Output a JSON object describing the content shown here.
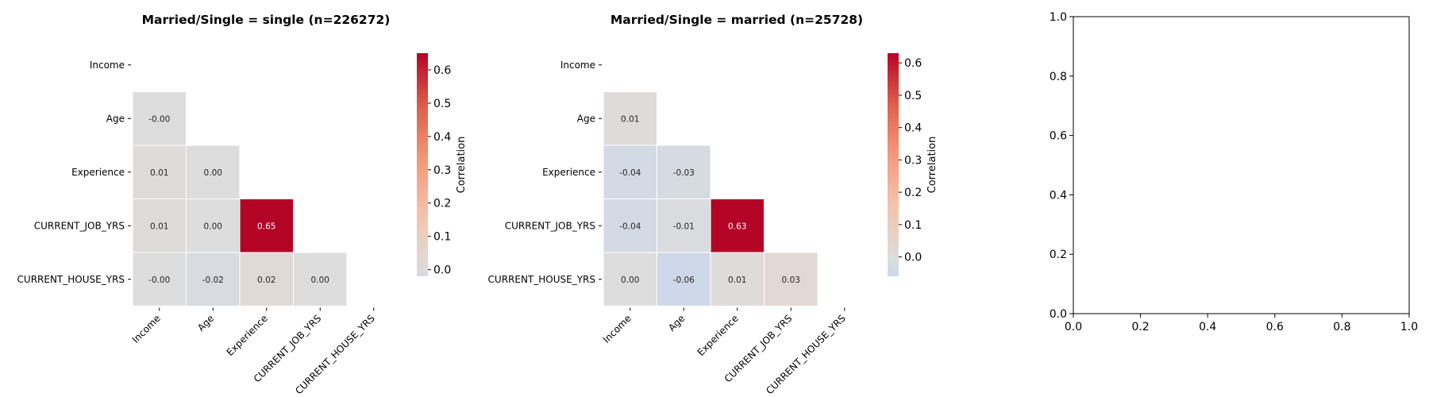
{
  "chart_data": [
    {
      "type": "heatmap",
      "title": "Married/Single = single (n=226272)",
      "rows": [
        "Income",
        "Age",
        "Experience",
        "CURRENT_JOB_YRS",
        "CURRENT_HOUSE_YRS"
      ],
      "cols": [
        "Income",
        "Age",
        "Experience",
        "CURRENT_JOB_YRS",
        "CURRENT_HOUSE_YRS"
      ],
      "mask": "upper-triangle-including-diagonal",
      "values": [
        [
          null,
          null,
          null,
          null,
          null
        ],
        [
          -0.0,
          null,
          null,
          null,
          null
        ],
        [
          0.01,
          0.0,
          null,
          null,
          null
        ],
        [
          0.01,
          0.0,
          0.65,
          null,
          null
        ],
        [
          -0.0,
          -0.02,
          0.02,
          0.0,
          null
        ]
      ],
      "cell_labels": [
        [
          "",
          "",
          "",
          "",
          ""
        ],
        [
          "-0.00",
          "",
          "",
          "",
          ""
        ],
        [
          "0.01",
          "0.00",
          "",
          "",
          ""
        ],
        [
          "0.01",
          "0.00",
          "0.65",
          "",
          ""
        ],
        [
          "-0.00",
          "-0.02",
          "0.02",
          "0.00",
          ""
        ]
      ],
      "colorbar": {
        "label": "Correlation",
        "range": [
          -0.02,
          0.65
        ],
        "ticks": [
          0.0,
          0.1,
          0.2,
          0.3,
          0.4,
          0.5,
          0.6
        ],
        "tick_labels": [
          "0.0",
          "0.1",
          "0.2",
          "0.3",
          "0.4",
          "0.5",
          "0.6"
        ],
        "colormap": "coolwarm-centered-at-0"
      }
    },
    {
      "type": "heatmap",
      "title": "Married/Single = married (n=25728)",
      "rows": [
        "Income",
        "Age",
        "Experience",
        "CURRENT_JOB_YRS",
        "CURRENT_HOUSE_YRS"
      ],
      "cols": [
        "Income",
        "Age",
        "Experience",
        "CURRENT_JOB_YRS",
        "CURRENT_HOUSE_YRS"
      ],
      "mask": "upper-triangle-including-diagonal",
      "values": [
        [
          null,
          null,
          null,
          null,
          null
        ],
        [
          0.01,
          null,
          null,
          null,
          null
        ],
        [
          -0.04,
          -0.03,
          null,
          null,
          null
        ],
        [
          -0.04,
          -0.01,
          0.63,
          null,
          null
        ],
        [
          0.0,
          -0.06,
          0.01,
          0.03,
          null
        ]
      ],
      "cell_labels": [
        [
          "",
          "",
          "",
          "",
          ""
        ],
        [
          "0.01",
          "",
          "",
          "",
          ""
        ],
        [
          "-0.04",
          "-0.03",
          "",
          "",
          ""
        ],
        [
          "-0.04",
          "-0.01",
          "0.63",
          "",
          ""
        ],
        [
          "0.00",
          "-0.06",
          "0.01",
          "0.03",
          ""
        ]
      ],
      "colorbar": {
        "label": "Correlation",
        "range": [
          -0.06,
          0.63
        ],
        "ticks": [
          0.0,
          0.1,
          0.2,
          0.3,
          0.4,
          0.5,
          0.6
        ],
        "tick_labels": [
          "0.0",
          "0.1",
          "0.2",
          "0.3",
          "0.4",
          "0.5",
          "0.6"
        ],
        "colormap": "coolwarm-centered-at-0"
      }
    },
    {
      "type": "scatter",
      "title": "",
      "series": [],
      "xlim": [
        0.0,
        1.0
      ],
      "ylim": [
        0.0,
        1.0
      ],
      "xticks": [
        "0.0",
        "0.2",
        "0.4",
        "0.6",
        "0.8",
        "1.0"
      ],
      "yticks": [
        "0.0",
        "0.2",
        "0.4",
        "0.6",
        "0.8",
        "1.0"
      ],
      "grid": false
    }
  ]
}
